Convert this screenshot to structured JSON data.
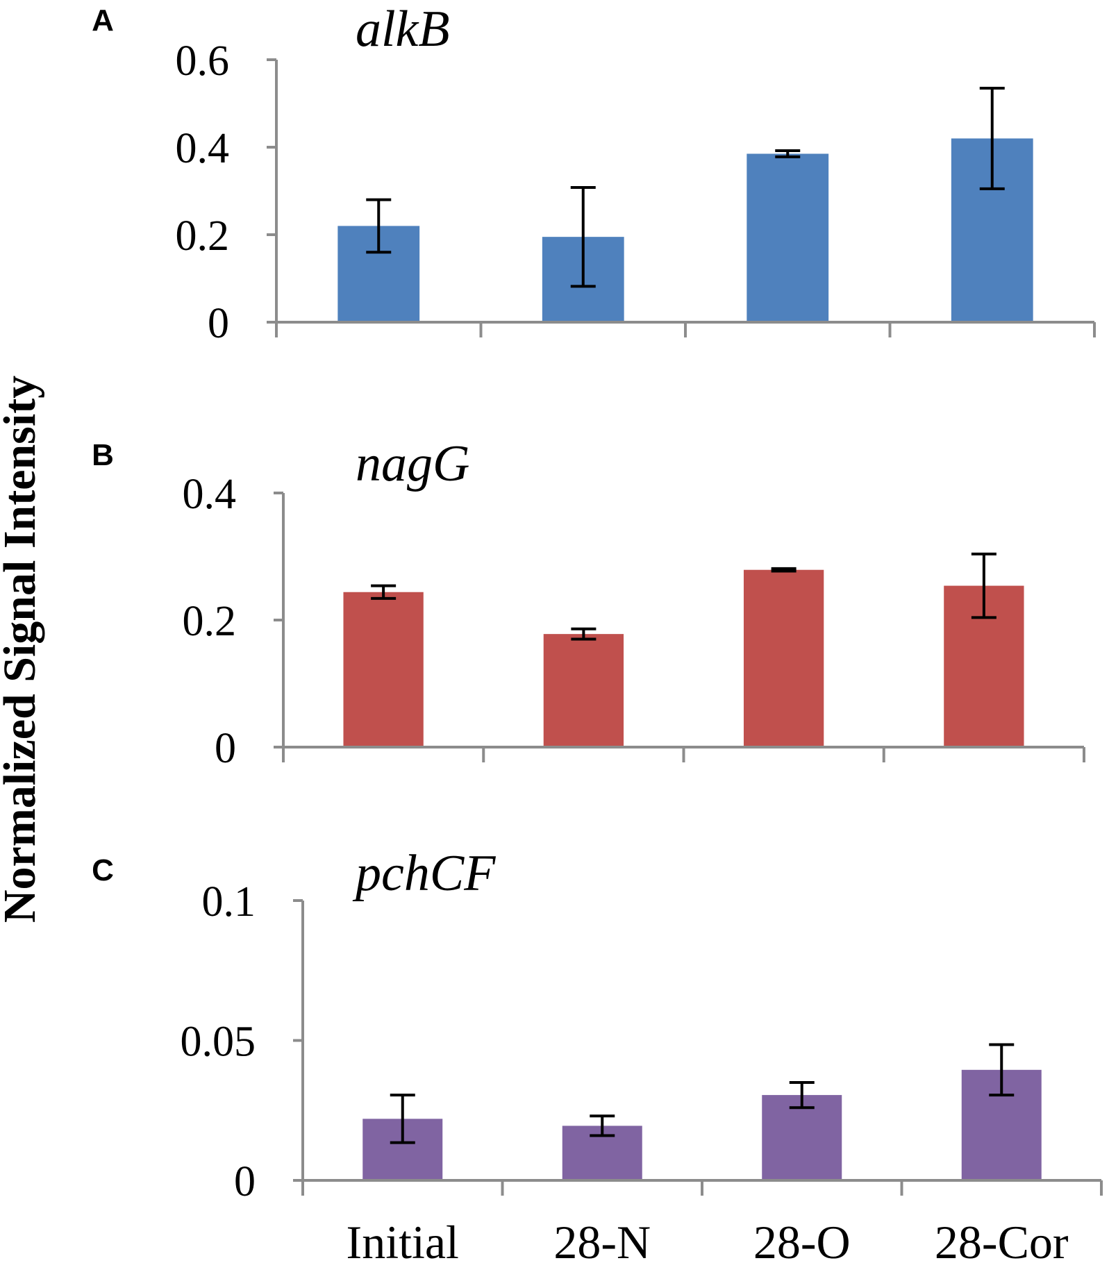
{
  "figure": {
    "ylabel": "Normalized Signal Intensity"
  },
  "chart_data": [
    {
      "type": "bar",
      "panel": "A",
      "title": "alkB",
      "categories": [
        "Initial",
        "28-N",
        "28-O",
        "28-Cor"
      ],
      "values": [
        0.22,
        0.195,
        0.385,
        0.42
      ],
      "errors": [
        0.06,
        0.113,
        0.007,
        0.115
      ],
      "ylim": [
        0,
        0.6
      ],
      "yticks": [
        0,
        0.2,
        0.4,
        0.6
      ],
      "ytick_labels": [
        "0",
        "0.2",
        "0.4",
        "0.6"
      ],
      "color": "#4f81bd",
      "show_xlabels": false
    },
    {
      "type": "bar",
      "panel": "B",
      "title": "nagG",
      "categories": [
        "Initial",
        "28-N",
        "28-O",
        "28-Cor"
      ],
      "values": [
        0.244,
        0.178,
        0.279,
        0.254
      ],
      "errors": [
        0.01,
        0.008,
        0.002,
        0.05
      ],
      "ylim": [
        0,
        0.4
      ],
      "yticks": [
        0,
        0.2,
        0.4
      ],
      "ytick_labels": [
        "0",
        "0.2",
        "0.4"
      ],
      "color": "#c0504d",
      "show_xlabels": false
    },
    {
      "type": "bar",
      "panel": "C",
      "title": "pchCF",
      "categories": [
        "Initial",
        "28-N",
        "28-O",
        "28-Cor"
      ],
      "values": [
        0.022,
        0.0195,
        0.0305,
        0.0395
      ],
      "errors": [
        0.0085,
        0.0035,
        0.0045,
        0.009
      ],
      "ylim": [
        0,
        0.1
      ],
      "yticks": [
        0,
        0.05,
        0.1
      ],
      "ytick_labels": [
        "0",
        "0.05",
        "0.1"
      ],
      "color": "#8064a2",
      "show_xlabels": true
    }
  ]
}
